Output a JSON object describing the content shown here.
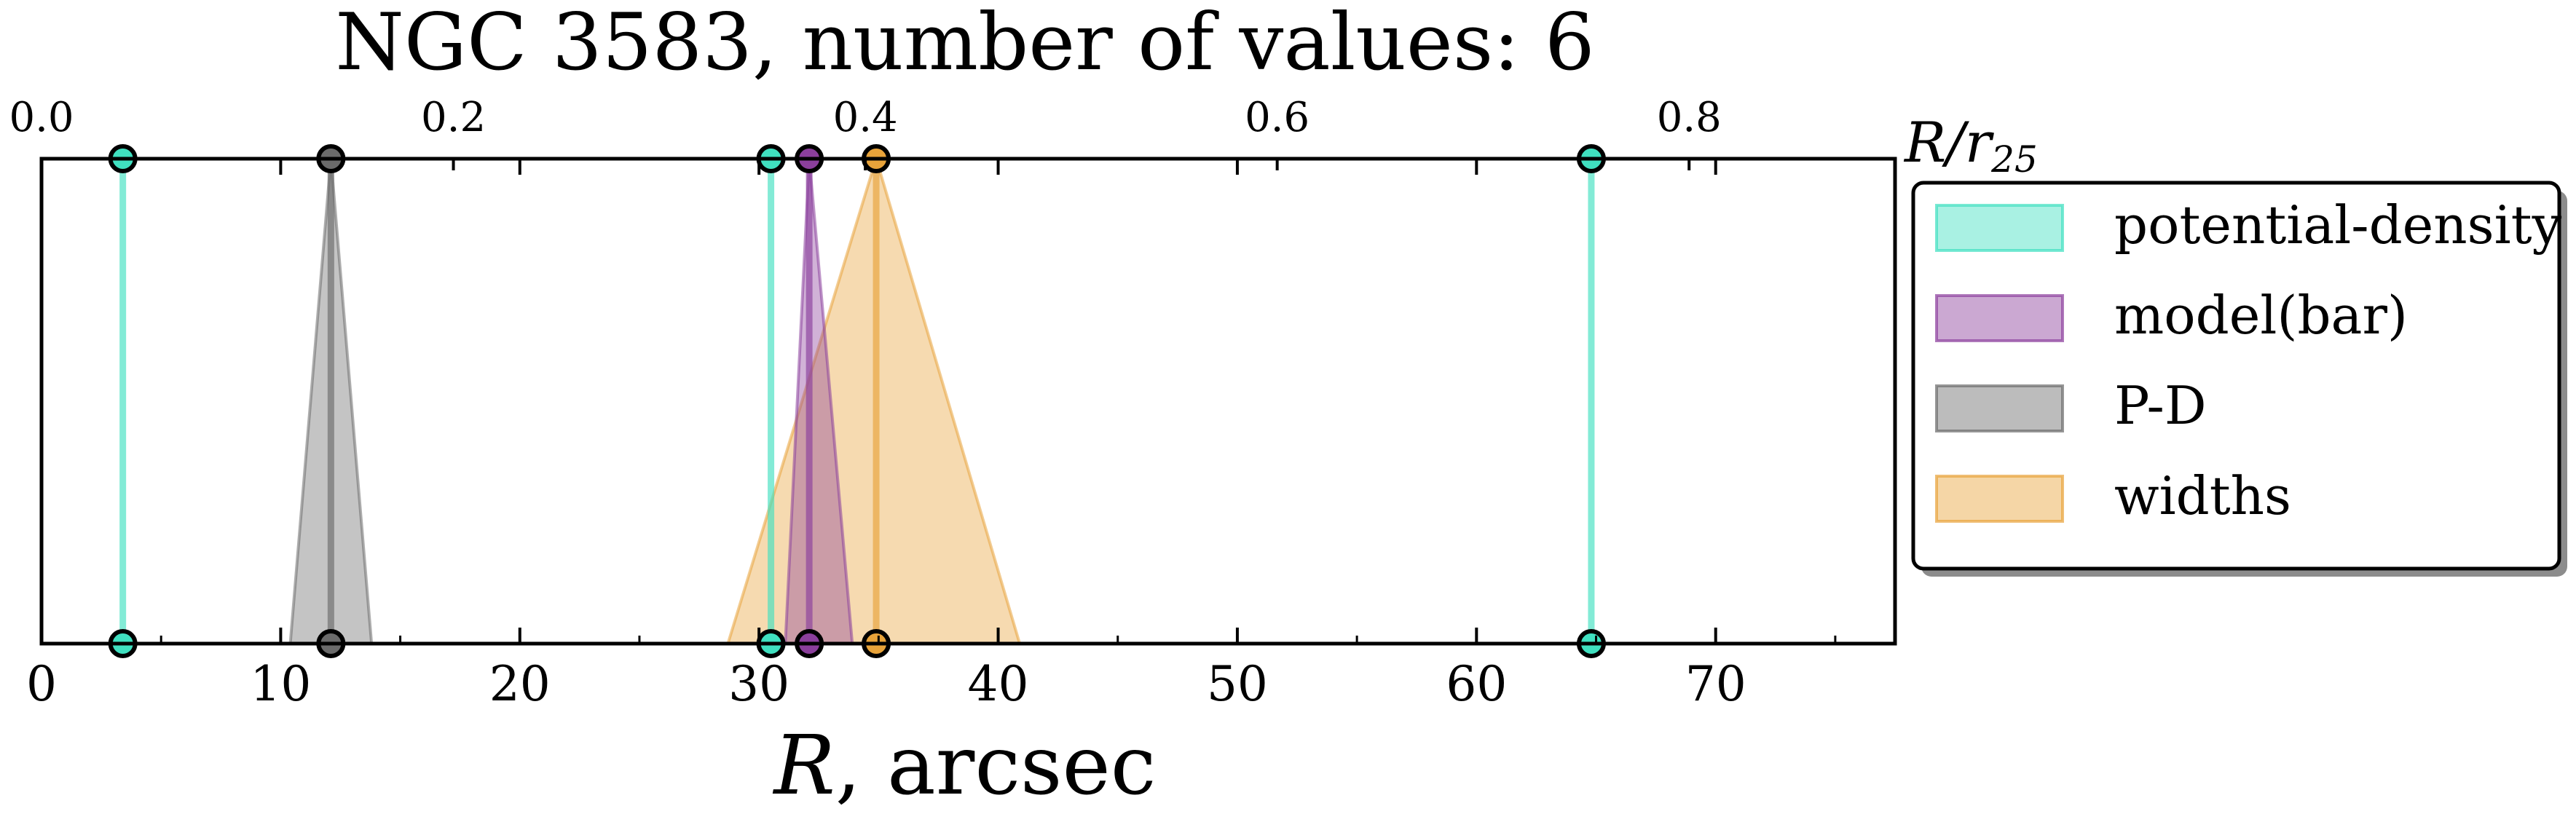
{
  "title": "NGC 3583, number of values: 6",
  "chart_data": {
    "type": "scatter",
    "title": "NGC 3583, number of values: 6",
    "xlabel": "R, arcsec",
    "xlabel_main": "R",
    "xlabel_unit": ", arcsec",
    "top_xlabel": "R/r25",
    "xlim": [
      0,
      77.5
    ],
    "top_xlim": [
      0,
      0.9
    ],
    "x_ticks": [
      "0",
      "10",
      "20",
      "30",
      "40",
      "50",
      "60",
      "70"
    ],
    "top_x_ticks": [
      "0.0",
      "0.2",
      "0.4",
      "0.6",
      "0.8"
    ],
    "legend_position": "outside-right",
    "series": [
      {
        "name": "potential-density",
        "color": "#40e0c0",
        "values": [
          {
            "x": 3.4,
            "xmin": 3.4,
            "xmax": 3.4
          },
          {
            "x": 30.5,
            "xmin": 30.5,
            "xmax": 30.5
          },
          {
            "x": 64.8,
            "xmin": 64.8,
            "xmax": 64.8
          }
        ]
      },
      {
        "name": "model(bar)",
        "color": "#8b3f9c",
        "values": [
          {
            "x": 32.1,
            "xmin": 31.1,
            "xmax": 33.9
          }
        ]
      },
      {
        "name": "P-D",
        "color": "#6b6b6b",
        "values": [
          {
            "x": 12.1,
            "xmin": 10.4,
            "xmax": 13.8
          }
        ]
      },
      {
        "name": "widths",
        "color": "#e8a33a",
        "values": [
          {
            "x": 34.9,
            "xmin": 28.7,
            "xmax": 40.9
          }
        ]
      }
    ]
  }
}
